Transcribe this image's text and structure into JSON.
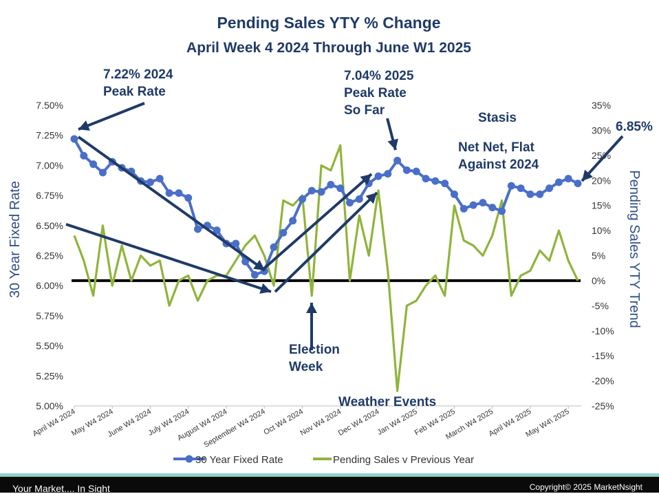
{
  "chart_data": {
    "type": "line",
    "title": "Pending Sales YTY % Change",
    "subtitle": "April Week 4 2024 Through June W1 2025",
    "ylabel_left": "30 Year Fixed Rate",
    "ylabel_right": "Pending Sales YTY  Trend",
    "y_left_range": [
      5.0,
      7.5
    ],
    "y_left_ticks": [
      "7.50%",
      "7.25%",
      "7.00%",
      "6.75%",
      "6.50%",
      "6.25%",
      "6.00%",
      "5.75%",
      "5.50%",
      "5.25%",
      "5.00%"
    ],
    "y_right_range": [
      -25,
      35
    ],
    "y_right_ticks": [
      "35%",
      "30%",
      "25%",
      "20%",
      "15%",
      "10%",
      "5%",
      "0%",
      "-5%",
      "-10%",
      "-15%",
      "-20%",
      "-25%"
    ],
    "x_ticks": [
      "April W4 2024",
      "May W4 2024",
      "June W4 2024",
      "July W4 2024",
      "August W4 2024",
      "September W4 2024",
      "Oct W4 2024",
      "Nov W4 2024",
      "Dec W4 2024",
      "Jan W4 2025",
      "Feb W4 2025",
      "March W4 2025",
      "April W4 2025",
      "May W4\\ 2025"
    ],
    "series": [
      {
        "name": "30 Year Fixed Rate",
        "axis": "left",
        "color": "#4a6fc9",
        "values": [
          7.22,
          7.08,
          7.01,
          6.94,
          7.03,
          6.98,
          6.95,
          6.87,
          6.86,
          6.89,
          6.77,
          6.77,
          6.73,
          6.47,
          6.5,
          6.46,
          6.35,
          6.35,
          6.2,
          6.09,
          6.12,
          6.32,
          6.44,
          6.54,
          6.72,
          6.79,
          6.78,
          6.84,
          6.81,
          6.69,
          6.72,
          6.85,
          6.91,
          6.93,
          7.04,
          6.96,
          6.95,
          6.89,
          6.87,
          6.85,
          6.76,
          6.64,
          6.67,
          6.69,
          6.65,
          6.62,
          6.83,
          6.81,
          6.76,
          6.76,
          6.81,
          6.86,
          6.89,
          6.85
        ]
      },
      {
        "name": "Pending Sales v Previous Year",
        "axis": "right",
        "color": "#8fb43a",
        "values": [
          9,
          4,
          -3,
          11,
          -1,
          7,
          0,
          5,
          3,
          4,
          -5,
          0,
          1,
          -4,
          0,
          1,
          1,
          4,
          7,
          9,
          5,
          -1,
          16,
          15,
          17,
          -3,
          23,
          22,
          27,
          0,
          13,
          5,
          18,
          2,
          -22,
          -5,
          -4,
          -1,
          1,
          -3,
          15,
          8,
          7,
          5,
          9,
          16,
          -3,
          1,
          2,
          6,
          4,
          10,
          4,
          0
        ]
      }
    ],
    "zero_line": {
      "axis": "right",
      "value": 0,
      "color": "#000000"
    },
    "legend": {
      "position": "bottom",
      "entries": [
        "30 Year Fixed Rate",
        "Pending Sales v Previous Year"
      ]
    },
    "grid": false,
    "annotations": [
      {
        "id": "peak-2024",
        "lines": [
          "7.22% 2024",
          "Peak Rate"
        ]
      },
      {
        "id": "peak-2025",
        "lines": [
          "7.04% 2025",
          "Peak Rate",
          "So Far"
        ]
      },
      {
        "id": "stasis",
        "lines": [
          "Stasis"
        ]
      },
      {
        "id": "net-flat",
        "lines": [
          "Net Net, Flat",
          "Against 2024"
        ]
      },
      {
        "id": "current-rate",
        "lines": [
          "6.85%"
        ]
      },
      {
        "id": "election",
        "lines": [
          "Election",
          "Week"
        ]
      },
      {
        "id": "weather",
        "lines": [
          "Weather Events"
        ]
      }
    ]
  },
  "footer": {
    "left": "Your Market.... In Sight",
    "right": "Copyright© 2025 MarketNsight"
  }
}
